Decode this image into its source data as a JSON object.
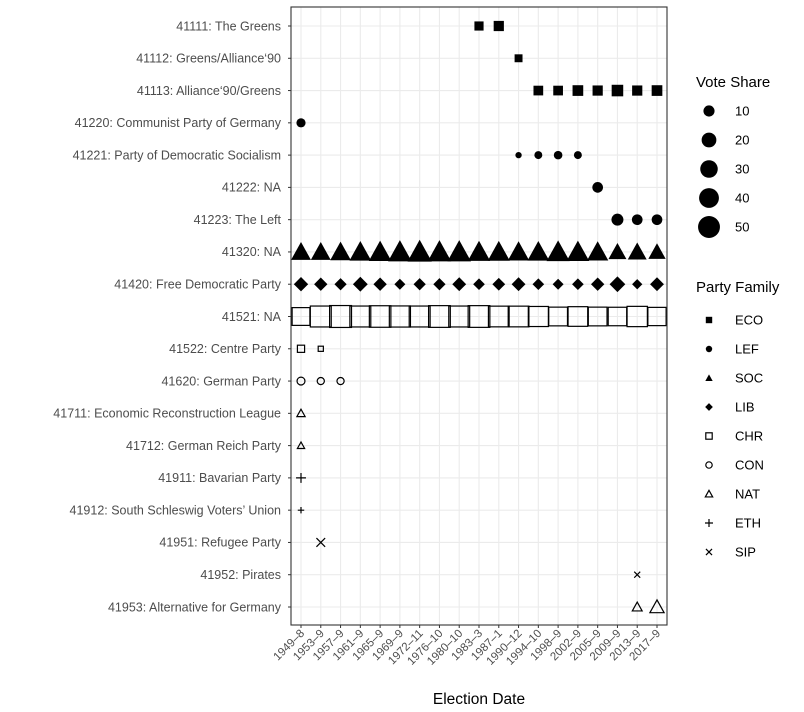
{
  "chart_data": {
    "type": "scatter",
    "xlabel": "Election Date",
    "ylabel": "",
    "x": [
      "1949–8",
      "1953–9",
      "1957–9",
      "1961–9",
      "1965–9",
      "1969–9",
      "1972–11",
      "1976–10",
      "1980–10",
      "1983–3",
      "1987–1",
      "1990–12",
      "1994–10",
      "1998–9",
      "2002–9",
      "2005–9",
      "2009–9",
      "2013–9",
      "2017–9"
    ],
    "categories": [
      "41111: The Greens",
      "41112: Greens/Alliance‘90",
      "41113: Alliance‘90/Greens",
      "41220: Communist Party of Germany",
      "41221: Party of Democratic Socialism",
      "41222: NA",
      "41223: The Left",
      "41320: NA",
      "41420: Free Democratic Party",
      "41521: NA",
      "41522: Centre Party",
      "41620: German Party",
      "41711: Economic Reconstruction League",
      "41712: German Reich Party",
      "41911: Bavarian Party",
      "41912: South Schleswig Voters’ Union",
      "41951: Refugee Party",
      "41952: Pirates",
      "41953: Alternative for Germany"
    ],
    "series": [
      {
        "party": "41111: The Greens",
        "family": "ECO",
        "points": [
          [
            "1983–3",
            6
          ],
          [
            "1987–1",
            8
          ]
        ]
      },
      {
        "party": "41112: Greens/Alliance‘90",
        "family": "ECO",
        "points": [
          [
            "1990–12",
            4
          ]
        ]
      },
      {
        "party": "41113: Alliance‘90/Greens",
        "family": "ECO",
        "points": [
          [
            "1994–10",
            7
          ],
          [
            "1998–9",
            7
          ],
          [
            "2002–9",
            9
          ],
          [
            "2005–9",
            8
          ],
          [
            "2009–9",
            11
          ],
          [
            "2013–9",
            8
          ],
          [
            "2017–9",
            9
          ]
        ]
      },
      {
        "party": "41220: Communist Party of Germany",
        "family": "LEF",
        "points": [
          [
            "1949–8",
            6
          ]
        ]
      },
      {
        "party": "41221: Party of Democratic Socialism",
        "family": "LEF",
        "points": [
          [
            "1990–12",
            2
          ],
          [
            "1994–10",
            4
          ],
          [
            "1998–9",
            5
          ],
          [
            "2002–9",
            4
          ]
        ]
      },
      {
        "party": "41222: NA",
        "family": "LEF",
        "points": [
          [
            "2005–9",
            9
          ]
        ]
      },
      {
        "party": "41223: The Left",
        "family": "LEF",
        "points": [
          [
            "2009–9",
            12
          ],
          [
            "2013–9",
            9
          ],
          [
            "2017–9",
            9
          ]
        ]
      },
      {
        "party": "41320: NA",
        "family": "SOC",
        "points": [
          [
            "1949–8",
            29
          ],
          [
            "1953–9",
            29
          ],
          [
            "1957–9",
            32
          ],
          [
            "1961–9",
            36
          ],
          [
            "1965–9",
            39
          ],
          [
            "1969–9",
            43
          ],
          [
            "1972–11",
            46
          ],
          [
            "1976–10",
            43
          ],
          [
            "1980–10",
            43
          ],
          [
            "1983–3",
            38
          ],
          [
            "1987–1",
            37
          ],
          [
            "1990–12",
            34
          ],
          [
            "1994–10",
            36
          ],
          [
            "1998–9",
            41
          ],
          [
            "2002–9",
            39
          ],
          [
            "2005–9",
            34
          ],
          [
            "2009–9",
            23
          ],
          [
            "2013–9",
            26
          ],
          [
            "2017–9",
            21
          ]
        ]
      },
      {
        "party": "41420: Free Democratic Party",
        "family": "LIB",
        "points": [
          [
            "1949–8",
            12
          ],
          [
            "1953–9",
            10
          ],
          [
            "1957–9",
            8
          ],
          [
            "1961–9",
            13
          ],
          [
            "1965–9",
            10
          ],
          [
            "1969–9",
            6
          ],
          [
            "1972–11",
            8
          ],
          [
            "1976–10",
            8
          ],
          [
            "1980–10",
            11
          ],
          [
            "1983–3",
            7
          ],
          [
            "1987–1",
            9
          ],
          [
            "1990–12",
            11
          ],
          [
            "1994–10",
            7
          ],
          [
            "1998–9",
            6
          ],
          [
            "2002–9",
            7
          ],
          [
            "2005–9",
            10
          ],
          [
            "2009–9",
            15
          ],
          [
            "2013–9",
            5
          ],
          [
            "2017–9",
            11
          ]
        ]
      },
      {
        "party": "41521: NA",
        "family": "CHR",
        "points": [
          [
            "1949–8",
            31
          ],
          [
            "1953–9",
            45
          ],
          [
            "1957–9",
            50
          ],
          [
            "1961–9",
            45
          ],
          [
            "1965–9",
            48
          ],
          [
            "1969–9",
            46
          ],
          [
            "1972–11",
            45
          ],
          [
            "1976–10",
            49
          ],
          [
            "1980–10",
            45
          ],
          [
            "1983–3",
            49
          ],
          [
            "1987–1",
            44
          ],
          [
            "1990–12",
            44
          ],
          [
            "1994–10",
            41
          ],
          [
            "1998–9",
            35
          ],
          [
            "2002–9",
            39
          ],
          [
            "2005–9",
            35
          ],
          [
            "2009–9",
            34
          ],
          [
            "2013–9",
            42
          ],
          [
            "2017–9",
            33
          ]
        ]
      },
      {
        "party": "41522: Centre Party",
        "family": "CHR",
        "points": [
          [
            "1949–8",
            3
          ],
          [
            "1953–9",
            1
          ]
        ]
      },
      {
        "party": "41620: German Party",
        "family": "CON",
        "points": [
          [
            "1949–8",
            4
          ],
          [
            "1953–9",
            3
          ],
          [
            "1957–9",
            3
          ]
        ]
      },
      {
        "party": "41711: Economic Reconstruction League",
        "family": "NAT",
        "points": [
          [
            "1949–8",
            3
          ]
        ]
      },
      {
        "party": "41712: German Reich Party",
        "family": "NAT",
        "points": [
          [
            "1949–8",
            2
          ]
        ]
      },
      {
        "party": "41911: Bavarian Party",
        "family": "ETH",
        "points": [
          [
            "1949–8",
            4
          ]
        ]
      },
      {
        "party": "41912: South Schleswig Voters’ Union",
        "family": "ETH",
        "points": [
          [
            "1949–8",
            1
          ]
        ]
      },
      {
        "party": "41951: Refugee Party",
        "family": "SIP",
        "points": [
          [
            "1953–9",
            6
          ]
        ]
      },
      {
        "party": "41952: Pirates",
        "family": "SIP",
        "points": [
          [
            "2013–9",
            2
          ]
        ]
      },
      {
        "party": "41953: Alternative for Germany",
        "family": "NAT",
        "points": [
          [
            "2013–9",
            5
          ],
          [
            "2017–9",
            13
          ]
        ]
      }
    ],
    "legends": {
      "size": {
        "title": "Vote Share",
        "values": [
          10,
          20,
          30,
          40,
          50
        ]
      },
      "shape": {
        "title": "Party Family",
        "entries": [
          {
            "label": "ECO",
            "shape": "filled-square"
          },
          {
            "label": "LEF",
            "shape": "filled-circle"
          },
          {
            "label": "SOC",
            "shape": "filled-triangle"
          },
          {
            "label": "LIB",
            "shape": "filled-diamond"
          },
          {
            "label": "CHR",
            "shape": "open-square"
          },
          {
            "label": "CON",
            "shape": "open-circle"
          },
          {
            "label": "NAT",
            "shape": "open-triangle"
          },
          {
            "label": "ETH",
            "shape": "plus"
          },
          {
            "label": "SIP",
            "shape": "cross"
          }
        ]
      },
      "placement": "right"
    },
    "grid": true,
    "colors": {
      "marks": "#000000",
      "grid": "#ebebeb",
      "panel_border": "#333333",
      "tick_text": "#4d4d4d"
    }
  }
}
